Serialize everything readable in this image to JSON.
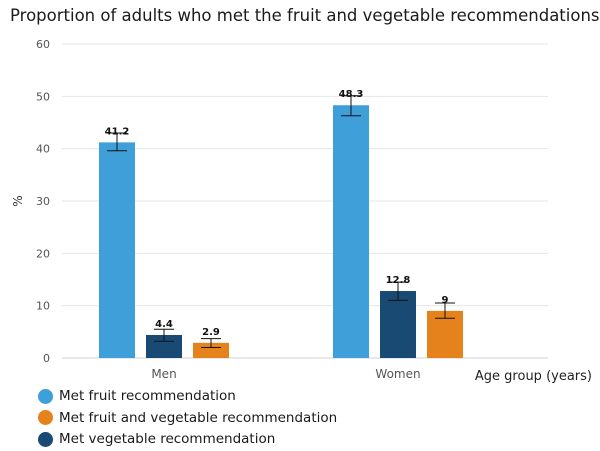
{
  "title": "Proportion of adults who met the fruit and vegetable recommendations",
  "colors": {
    "fruit": "#3f9fd8",
    "fruit_and_veg": "#e5821b",
    "vegetable": "#184a74",
    "grid": "#e6e6e6",
    "axis_text": "#555555"
  },
  "chart_data": {
    "type": "bar",
    "title": "Proportion of adults who met the fruit and vegetable recommendations",
    "xlabel": "Age group (years)",
    "ylabel": "%",
    "ylim": [
      0,
      60
    ],
    "yticks": [
      0,
      10,
      20,
      30,
      40,
      50,
      60
    ],
    "grid": true,
    "legend_position": "bottom-left",
    "categories": [
      "Men",
      "Women"
    ],
    "series": [
      {
        "name": "Met fruit recommendation",
        "color_key": "fruit",
        "values": [
          41.2,
          48.3
        ],
        "labels": [
          "41.2",
          "48.3"
        ],
        "error_low": [
          39.6,
          46.3
        ],
        "error_high": [
          43.0,
          50.1
        ]
      },
      {
        "name": "Met vegetable recommendation",
        "color_key": "vegetable",
        "values": [
          4.4,
          12.8
        ],
        "labels": [
          "4.4",
          "12.8"
        ],
        "error_low": [
          3.2,
          11.0
        ],
        "error_high": [
          5.5,
          14.5
        ]
      },
      {
        "name": "Met fruit and vegetable recommendation",
        "color_key": "fruit_and_veg",
        "values": [
          2.9,
          9
        ],
        "labels": [
          "2.9",
          "9"
        ],
        "error_low": [
          2.0,
          7.6
        ],
        "error_high": [
          3.7,
          10.5
        ]
      }
    ],
    "legend": [
      {
        "name": "Met fruit recommendation",
        "color_key": "fruit"
      },
      {
        "name": "Met fruit and vegetable recommendation",
        "color_key": "fruit_and_veg"
      },
      {
        "name": "Met vegetable recommendation",
        "color_key": "vegetable"
      }
    ]
  }
}
